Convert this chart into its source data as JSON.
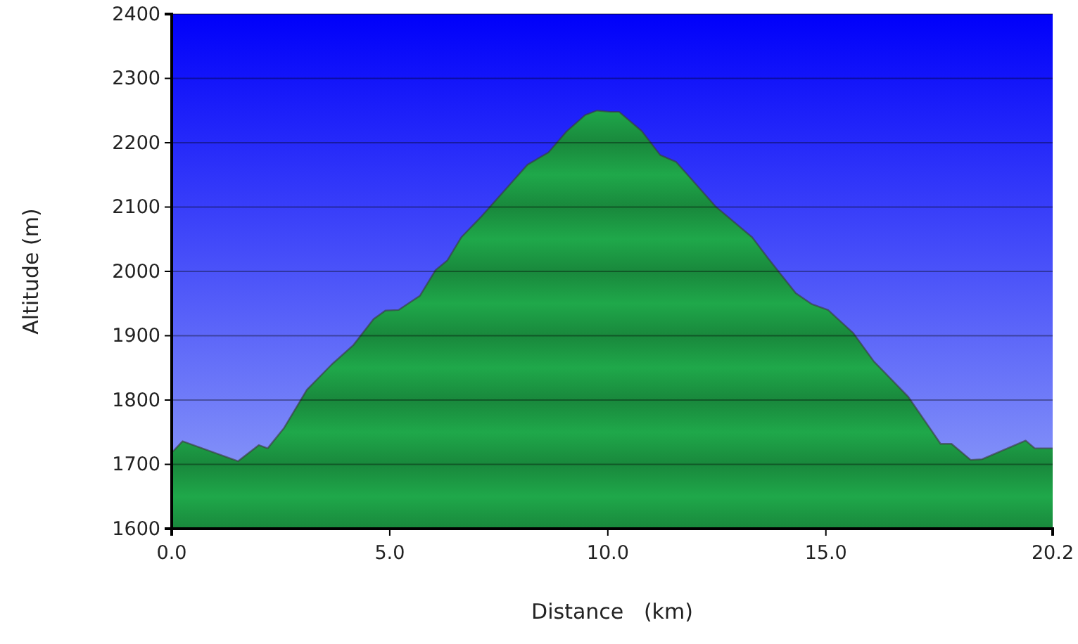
{
  "chart_data": {
    "type": "area",
    "xlabel": "Distance   (km)",
    "ylabel": "Altitude (m)",
    "xlim": [
      0,
      20.2
    ],
    "ylim": [
      1600,
      2400
    ],
    "xticks": [
      {
        "value": 0,
        "label": "0.0"
      },
      {
        "value": 5,
        "label": "5.0"
      },
      {
        "value": 10,
        "label": "10.0"
      },
      {
        "value": 15,
        "label": "15.0"
      },
      {
        "value": 20.2,
        "label": "20.2"
      }
    ],
    "yticks": [
      1600,
      1700,
      1800,
      1900,
      2000,
      2100,
      2200,
      2300,
      2400
    ],
    "grid": "y",
    "series": [
      {
        "color": "#1fa84a",
        "x": [
          0,
          0.04,
          0.25,
          1.52,
          2.0,
          2.2,
          2.57,
          3.1,
          3.68,
          4.16,
          4.63,
          4.9,
          5.2,
          5.69,
          6.05,
          6.32,
          6.64,
          7.11,
          7.74,
          8.16,
          8.64,
          9.06,
          9.48,
          9.75,
          10.06,
          10.26,
          10.78,
          11.2,
          11.57,
          12.47,
          13.31,
          13.68,
          14.31,
          14.68,
          15.05,
          15.63,
          16.1,
          16.89,
          17.63,
          17.88,
          18.32,
          18.58,
          19.58,
          19.79,
          20.16,
          20.2
        ],
        "values": [
          1720,
          1721,
          1736,
          1705,
          1730,
          1725,
          1756,
          1816,
          1856,
          1885,
          1926,
          1939,
          1940,
          1962,
          2002,
          2017,
          2053,
          2086,
          2134,
          2166,
          2185,
          2218,
          2243,
          2250,
          2248,
          2248,
          2218,
          2181,
          2170,
          2101,
          2053,
          2020,
          1966,
          1949,
          1940,
          1904,
          1860,
          1805,
          1732,
          1732,
          1707,
          1708,
          1737,
          1725,
          1725,
          1725
        ]
      }
    ]
  }
}
